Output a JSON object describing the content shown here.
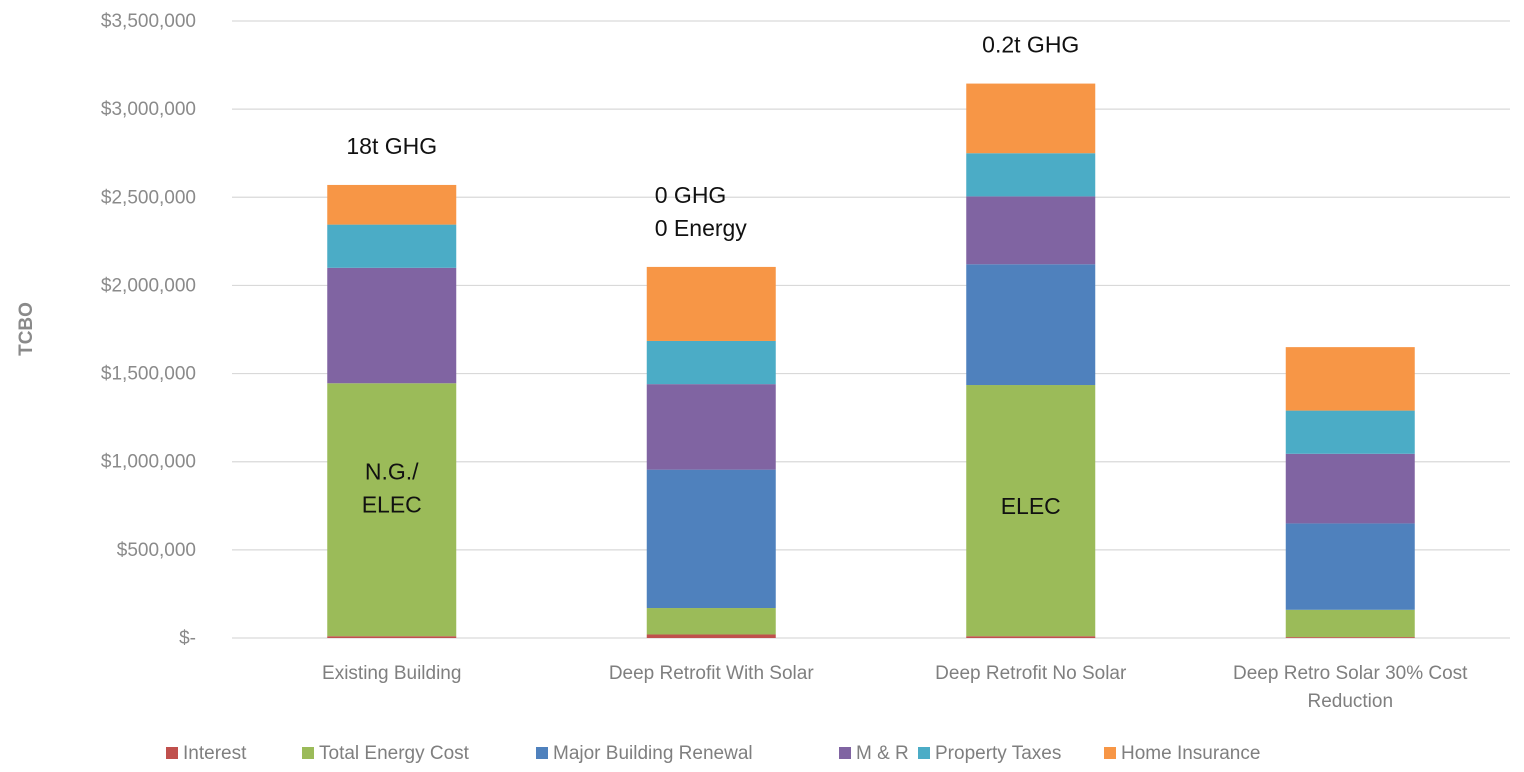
{
  "chart_data": {
    "type": "bar",
    "stacked": true,
    "ylabel": "TCBO",
    "ylim": [
      0,
      3500000
    ],
    "y_ticks": [
      "$-",
      "$500,000",
      "$1,000,000",
      "$1,500,000",
      "$2,000,000",
      "$2,500,000",
      "$3,000,000",
      "$3,500,000"
    ],
    "y_tick_values": [
      0,
      500000,
      1000000,
      1500000,
      2000000,
      2500000,
      3000000,
      3500000
    ],
    "grid": true,
    "legend_position": "bottom",
    "categories": [
      [
        "Existing Building"
      ],
      [
        "Deep Retrofit With Solar"
      ],
      [
        "Deep Retrofit No Solar"
      ],
      [
        "Deep Retro Solar 30% Cost",
        "Reduction"
      ]
    ],
    "series": [
      {
        "name": "Interest",
        "color": "#c0504d",
        "values": [
          10000,
          20000,
          10000,
          5000
        ]
      },
      {
        "name": "Total Energy Cost",
        "color": "#9bbb59",
        "values": [
          1435000,
          150000,
          1425000,
          155000
        ]
      },
      {
        "name": "Major Building Renewal",
        "color": "#4f81bd",
        "values": [
          0,
          785000,
          685000,
          490000
        ]
      },
      {
        "name": "M & R",
        "color": "#8064a2",
        "values": [
          655000,
          485000,
          385000,
          395000
        ]
      },
      {
        "name": "Property Taxes",
        "color": "#4bacc6",
        "values": [
          245000,
          245000,
          245000,
          245000
        ]
      },
      {
        "name": "Home Insurance",
        "color": "#f79646",
        "values": [
          225000,
          420000,
          395000,
          360000
        ]
      }
    ],
    "annotations": [
      {
        "category_index": 0,
        "lines": [
          "18t GHG"
        ],
        "position": "above"
      },
      {
        "category_index": 1,
        "lines": [
          "0 GHG",
          "0 Energy"
        ],
        "position": "above"
      },
      {
        "category_index": 2,
        "lines": [
          "0.2t GHG"
        ],
        "position": "above"
      },
      {
        "category_index": 0,
        "lines": [
          "N.G./",
          "ELEC"
        ],
        "position": "inside",
        "y_value": 850000
      },
      {
        "category_index": 2,
        "lines": [
          "ELEC"
        ],
        "position": "inside",
        "y_value": 750000
      }
    ]
  }
}
